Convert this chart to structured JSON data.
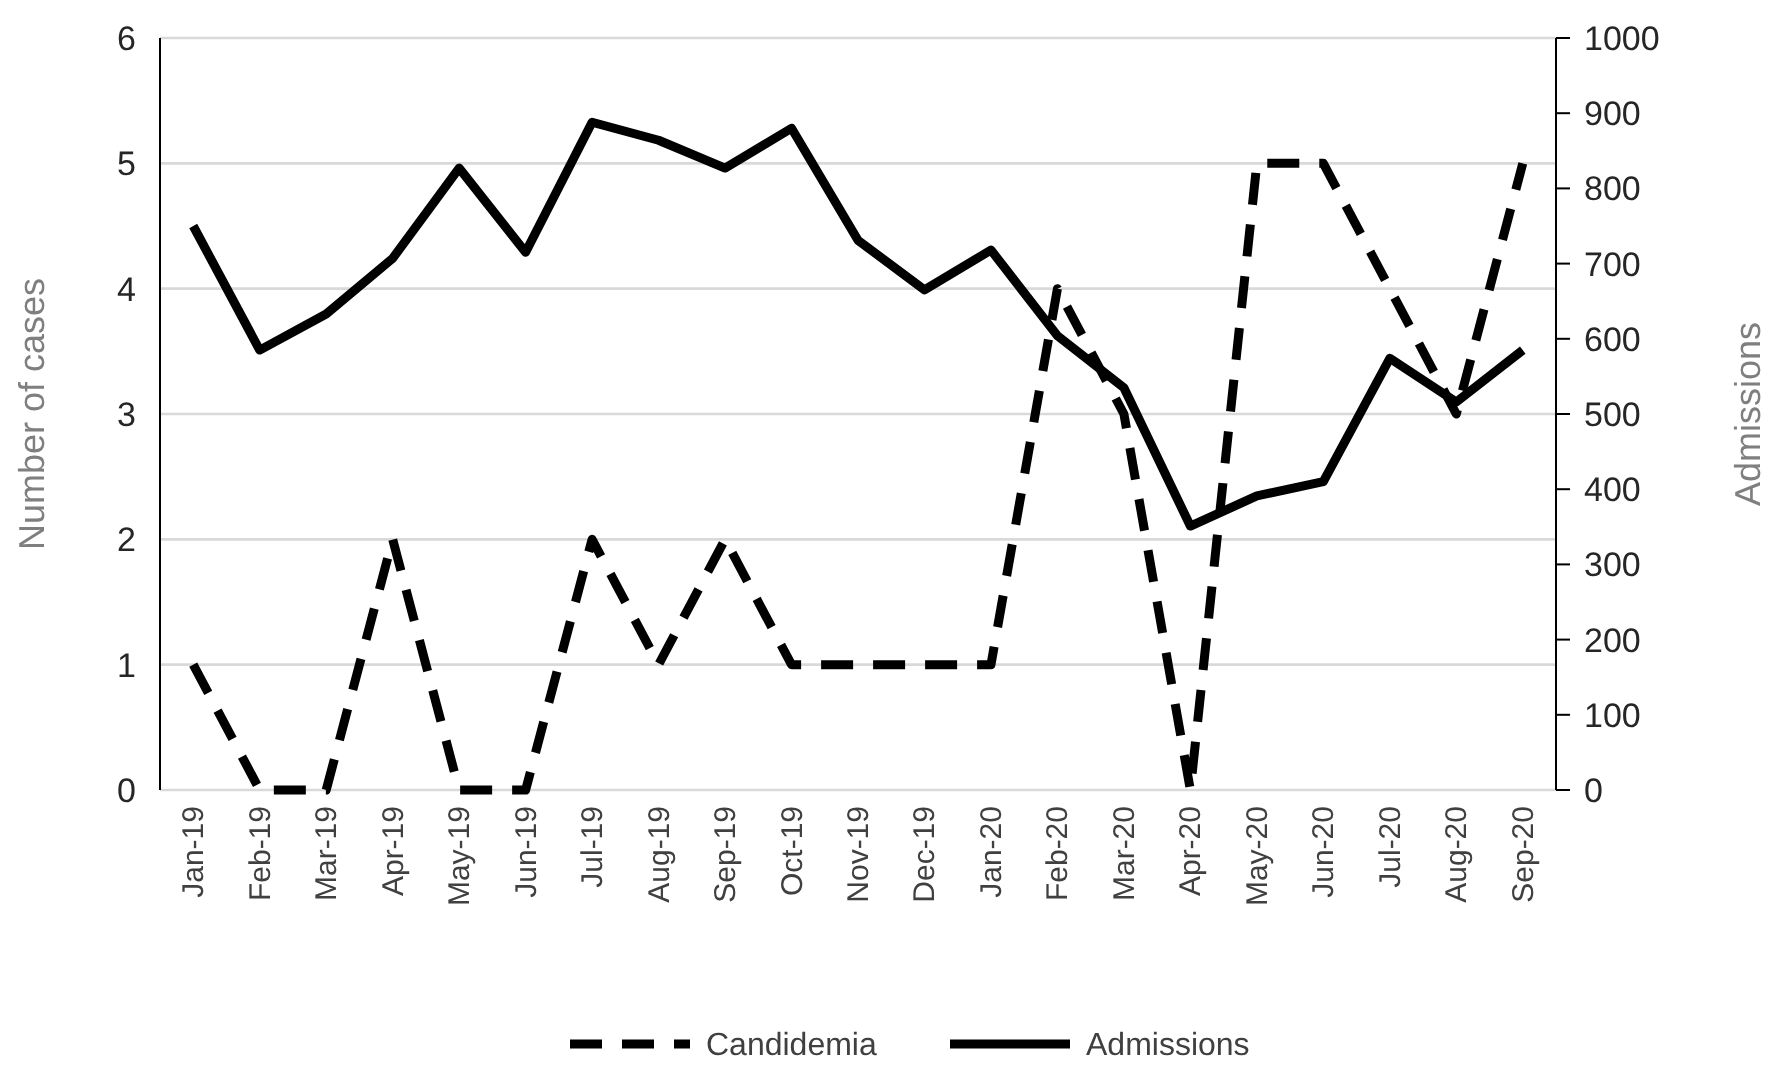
{
  "chart_data": {
    "type": "line",
    "categories": [
      "Jan-19",
      "Feb-19",
      "Mar-19",
      "Apr-19",
      "May-19",
      "Jun-19",
      "Jul-19",
      "Aug-19",
      "Sep-19",
      "Oct-19",
      "Nov-19",
      "Dec-19",
      "Jan-20",
      "Feb-20",
      "Mar-20",
      "Apr-20",
      "May-20",
      "Jun-20",
      "Jul-20",
      "Aug-20",
      "Sep-20"
    ],
    "series": [
      {
        "name": "Candidemia",
        "color": "#000000",
        "line_style": "dashed",
        "values": [
          1,
          0,
          0,
          2,
          0,
          0,
          2,
          1,
          2,
          1,
          1,
          1,
          1,
          4,
          3,
          0,
          5,
          5,
          4,
          3,
          5
        ]
      },
      {
        "name": "Admissions",
        "color": "#000000",
        "line_style": "solid",
        "axis": "y2",
        "values": [
          750,
          585,
          633,
          707,
          827,
          715,
          888,
          864,
          827,
          880,
          731,
          665,
          718,
          604,
          535,
          351,
          391,
          410,
          574,
          516,
          585
        ]
      }
    ],
    "ylabel": "Number of cases",
    "y2label": "Admissions",
    "ylim": [
      0,
      6
    ],
    "yticks": [
      0,
      1,
      2,
      3,
      4,
      5,
      6
    ],
    "y2lim": [
      0,
      1000
    ],
    "y2ticks": [
      0,
      100,
      200,
      300,
      400,
      500,
      600,
      700,
      800,
      900,
      1000
    ],
    "grid": "y",
    "legend": "bottom",
    "marker": "none"
  }
}
